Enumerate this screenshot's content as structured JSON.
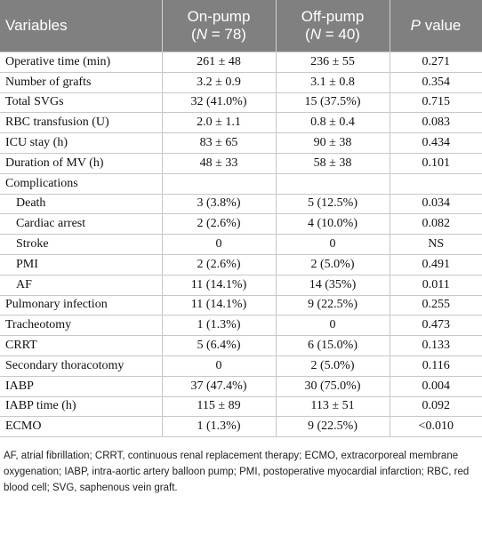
{
  "header": {
    "columns": [
      {
        "label": "Variables"
      },
      {
        "label": "On-pump",
        "sub": [
          "(",
          "N",
          " = 78)"
        ]
      },
      {
        "label": "Off-pump",
        "sub": [
          "(",
          "N",
          " = 40)"
        ]
      },
      {
        "parts": [
          "P",
          " value"
        ]
      }
    ]
  },
  "table": {
    "rows": [
      {
        "cells": [
          "Operative time (min)",
          "261 ± 48",
          "236 ± 55",
          "0.271"
        ]
      },
      {
        "cells": [
          "Number of grafts",
          "3.2 ± 0.9",
          "3.1 ± 0.8",
          "0.354"
        ]
      },
      {
        "cells": [
          "Total SVGs",
          "32 (41.0%)",
          "15 (37.5%)",
          "0.715"
        ]
      },
      {
        "cells": [
          "RBC transfusion (U)",
          "2.0 ± 1.1",
          "0.8 ± 0.4",
          "0.083"
        ]
      },
      {
        "cells": [
          "ICU stay (h)",
          "83 ± 65",
          "90 ± 38",
          "0.434"
        ]
      },
      {
        "cells": [
          "Duration of MV (h)",
          "48 ± 33",
          "58 ± 38",
          "0.101"
        ]
      },
      {
        "cells": [
          "Complications"
        ]
      },
      {
        "cells": [
          "Death",
          "3 (3.8%)",
          "5 (12.5%)",
          "0.034"
        ],
        "indent": true
      },
      {
        "cells": [
          "Cardiac arrest",
          "2 (2.6%)",
          "4 (10.0%)",
          "0.082"
        ],
        "indent": true
      },
      {
        "cells": [
          "Stroke",
          "0",
          "0",
          "NS"
        ],
        "indent": true
      },
      {
        "cells": [
          "PMI",
          "2 (2.6%)",
          "2 (5.0%)",
          "0.491"
        ],
        "indent": true
      },
      {
        "cells": [
          "AF",
          "11 (14.1%)",
          "14 (35%)",
          "0.011"
        ],
        "indent": true
      },
      {
        "cells": [
          "Pulmonary infection",
          "11 (14.1%)",
          "9 (22.5%)",
          "0.255"
        ]
      },
      {
        "cells": [
          "Tracheotomy",
          "1 (1.3%)",
          "0",
          "0.473"
        ]
      },
      {
        "cells": [
          "CRRT",
          "5 (6.4%)",
          "6 (15.0%)",
          "0.133"
        ]
      },
      {
        "cells": [
          "Secondary thoracotomy",
          "0",
          "2 (5.0%)",
          "0.116"
        ]
      },
      {
        "cells": [
          "IABP",
          "37 (47.4%)",
          "30 (75.0%)",
          "0.004"
        ]
      },
      {
        "cells": [
          "IABP time (h)",
          "115 ± 89",
          "113 ± 51",
          "0.092"
        ]
      },
      {
        "cells": [
          "ECMO",
          "1 (1.3%)",
          "9 (22.5%)",
          "<0.010"
        ]
      }
    ]
  },
  "footnote": "AF, atrial fibrillation; CRRT, continuous renal replacement therapy; ECMO, extracorporeal membrane oxygenation; IABP, intra-aortic artery balloon pump; PMI, postoperative myocardial infarction; RBC, red blood cell; SVG, saphenous vein graft."
}
